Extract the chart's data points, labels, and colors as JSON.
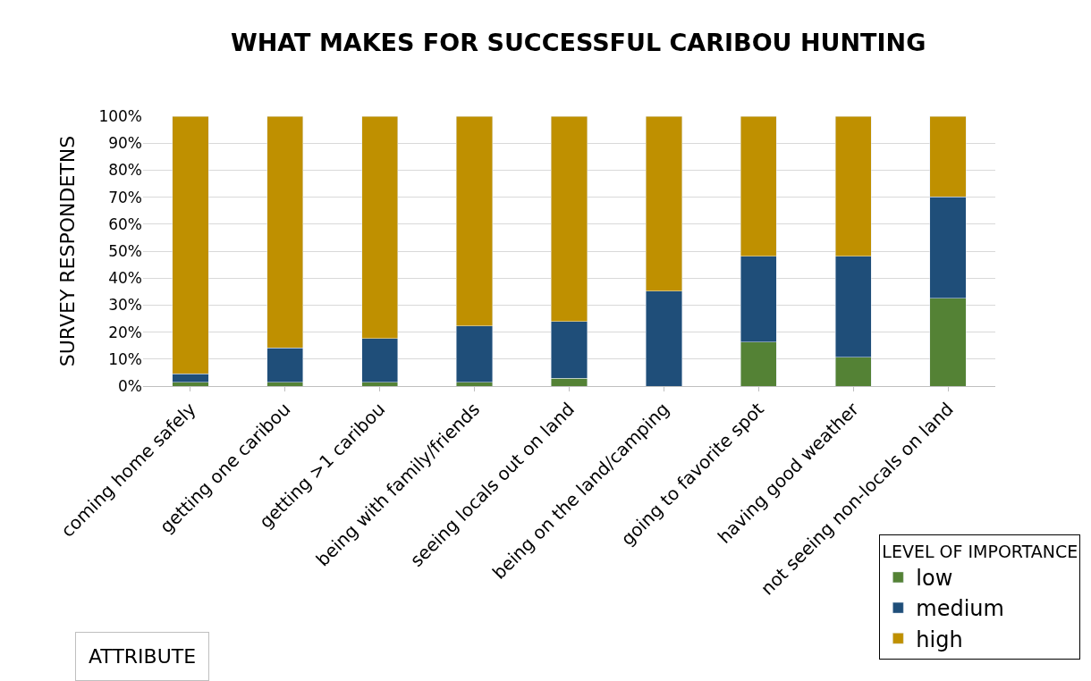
{
  "chart_data": {
    "type": "bar",
    "stacked": true,
    "title": "WHAT MAKES FOR SUCCESSFUL CARIBOU HUNTING",
    "xlabel": "ATTRIBUTE",
    "ylabel": "SURVEY RESPONDETNS",
    "legend_title": "LEVEL OF IMPORTANCE",
    "categories": [
      "coming home safely",
      "getting one caribou",
      "getting >1 caribou",
      "being with family/friends",
      "seeing locals out on land",
      "being on the land/camping",
      "going to favorite spot",
      "having good weather",
      "not seeing non-locals on land"
    ],
    "series": [
      {
        "name": "low",
        "color": "#548235",
        "values": [
          1.4,
          1.4,
          1.4,
          1.4,
          2.9,
          0,
          16.3,
          10.7,
          32.6
        ]
      },
      {
        "name": "medium",
        "color": "#1f4e79",
        "values": [
          3.1,
          12.8,
          16.2,
          20.9,
          21.0,
          35.2,
          31.8,
          37.4,
          37.6
        ]
      },
      {
        "name": "high",
        "color": "#bf9000",
        "values": [
          95.5,
          85.8,
          82.4,
          77.7,
          76.1,
          64.8,
          51.9,
          51.9,
          29.8
        ]
      }
    ],
    "ylim": [
      0,
      100
    ],
    "yticks": [
      {
        "value": 0,
        "label": "0%"
      },
      {
        "value": 10,
        "label": "10%"
      },
      {
        "value": 20,
        "label": "20%"
      },
      {
        "value": 30,
        "label": "30%"
      },
      {
        "value": 40,
        "label": "40%"
      },
      {
        "value": 50,
        "label": "50%"
      },
      {
        "value": 60,
        "label": "60%"
      },
      {
        "value": 70,
        "label": "70%"
      },
      {
        "value": 80,
        "label": "80%"
      },
      {
        "value": 90,
        "label": "90%"
      },
      {
        "value": 100,
        "label": "100%"
      }
    ],
    "grid": "y",
    "legend": "bottom right"
  }
}
